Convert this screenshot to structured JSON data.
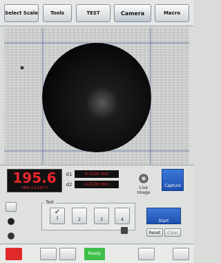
{
  "toolbar": {
    "buttons": [
      "Select Scale",
      "Tools",
      "TEST",
      "Camera",
      "Macro"
    ]
  },
  "reading": {
    "value": "195.6",
    "unit": "HBW 2.5/187.5"
  },
  "diagonals": [
    {
      "label": "d1",
      "value": "4.3100 mm"
    },
    {
      "label": "d2",
      "value": "4.3100 mm"
    }
  ],
  "live_image": {
    "label": "Live Image"
  },
  "capture": {
    "label": "Capture"
  },
  "test_panel": {
    "title": "Test",
    "slots": [
      "1",
      "2",
      "3",
      "4"
    ]
  },
  "actions": {
    "start": "Start",
    "reset": "Reset",
    "clear": "Clear"
  },
  "footer": {
    "status": "Ready"
  }
}
